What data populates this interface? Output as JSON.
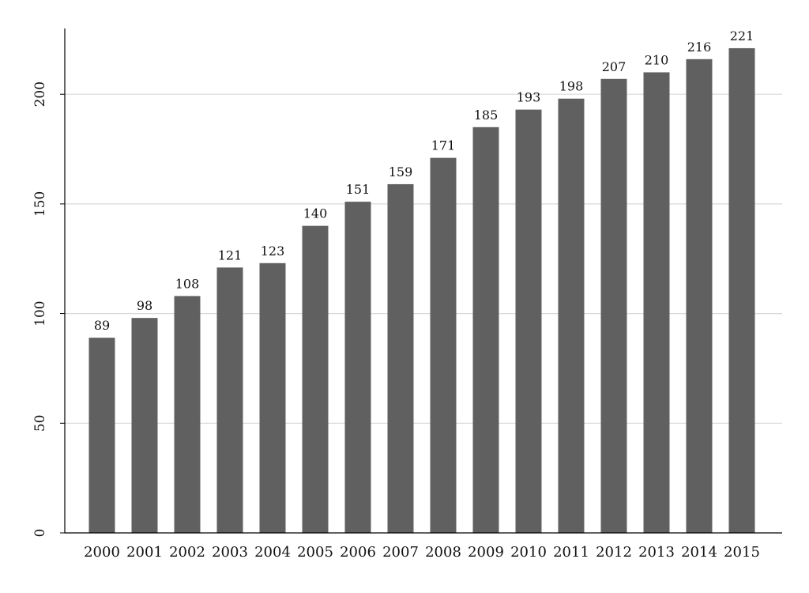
{
  "chart_data": {
    "type": "bar",
    "title": "",
    "xlabel": "",
    "ylabel": "",
    "categories": [
      "2000",
      "2001",
      "2002",
      "2003",
      "2004",
      "2005",
      "2006",
      "2007",
      "2008",
      "2009",
      "2010",
      "2011",
      "2012",
      "2013",
      "2014",
      "2015"
    ],
    "values": [
      89,
      98,
      108,
      121,
      123,
      140,
      151,
      159,
      171,
      185,
      193,
      198,
      207,
      210,
      216,
      221
    ],
    "ylim": [
      0,
      230
    ],
    "yticks": [
      0,
      50,
      100,
      150,
      200
    ],
    "grid": true,
    "data_labels": true,
    "colors": {
      "bar": "#606060",
      "grid": "#d9d9d9",
      "axis": "#000000"
    }
  }
}
